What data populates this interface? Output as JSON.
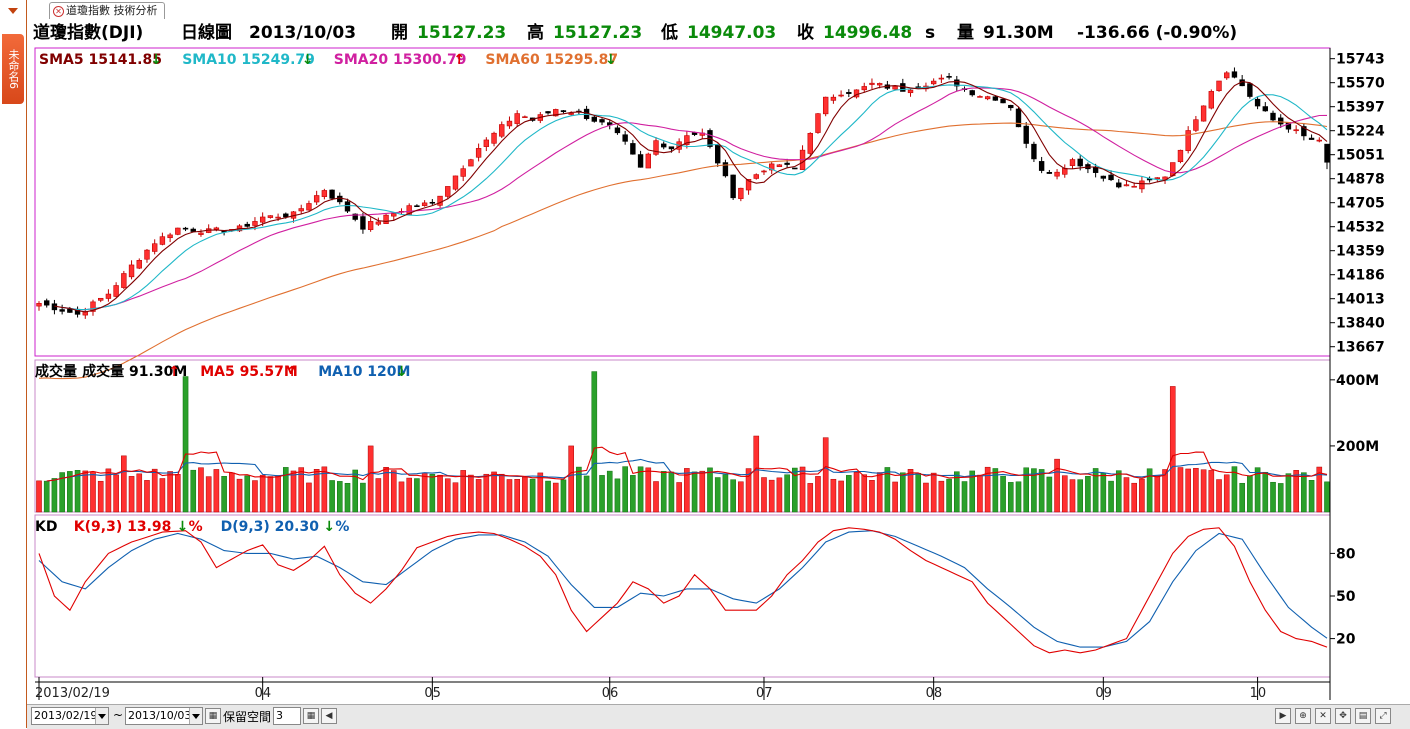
{
  "side_tab_label": "未命名6",
  "tab": {
    "label": "道瓊指數 技術分析"
  },
  "header": {
    "name": "道瓊指數(DJI)",
    "chart_type": "日線圖",
    "date": "2013/10/03",
    "open_label": "開",
    "open": "15127.23",
    "high_label": "高",
    "high": "15127.23",
    "low_label": "低",
    "low": "14947.03",
    "close_label": "收",
    "close": "14996.48",
    "close_suffix": "s",
    "volume_label": "量",
    "volume": "91.30M",
    "change": "-136.66 (-0.90%)"
  },
  "legends": {
    "price": [
      {
        "text": "SMA5 15141.85",
        "color": "#800000",
        "arrow": "down"
      },
      {
        "text": "SMA10 15249.79",
        "color": "#20b8c8",
        "arrow": "down"
      },
      {
        "text": "SMA20 15300.79",
        "color": "#d020a0",
        "arrow": "up"
      },
      {
        "text": "SMA60 15295.87",
        "color": "#e07030",
        "arrow": "down"
      }
    ],
    "volume": [
      {
        "text": "成交量",
        "color": "#000000",
        "arrow": "none"
      },
      {
        "text": "成交量 91.30M",
        "color": "#000000",
        "arrow": "up"
      },
      {
        "text": "MA5 95.57M",
        "color": "#e00000",
        "arrow": "up"
      },
      {
        "text": "MA10 120M",
        "color": "#1060b0",
        "arrow": "down"
      }
    ],
    "kd": [
      {
        "text": "KD",
        "color": "#000000",
        "arrow": "none"
      },
      {
        "text": "K(9,3) 13.98",
        "color": "#e00000",
        "arrow": "down",
        "suffix": "%"
      },
      {
        "text": "D(9,3) 20.30",
        "color": "#1060b0",
        "arrow": "down",
        "suffix": "%"
      }
    ]
  },
  "colors": {
    "up": "#ff3030",
    "down": "#000000",
    "vol_up": "#ff3030",
    "vol_down": "#2aa02a",
    "frame": "#cc22cc",
    "axis": "#000000"
  },
  "chart_data": [
    {
      "type": "candlestick",
      "title": "道瓊指數(DJI) 日線圖",
      "x_start": "2013/02/19",
      "x_end": "2013/10/03",
      "month_ticks": [
        {
          "label": "2013/02/19",
          "index": 0
        },
        {
          "label": "04",
          "index": 29
        },
        {
          "label": "05",
          "index": 51
        },
        {
          "label": "06",
          "index": 74
        },
        {
          "label": "07",
          "index": 94
        },
        {
          "label": "08",
          "index": 116
        },
        {
          "label": "09",
          "index": 138
        },
        {
          "label": "10",
          "index": 158
        }
      ],
      "y_ticks": [
        15743,
        15570,
        15397,
        15224,
        15051,
        14878,
        14705,
        14532,
        14359,
        14186,
        14013,
        13840,
        13667
      ],
      "ylim": [
        13600,
        15820
      ],
      "anchors": [
        [
          0,
          13980
        ],
        [
          5,
          13900
        ],
        [
          9,
          14050
        ],
        [
          12,
          14250
        ],
        [
          15,
          14420
        ],
        [
          18,
          14520
        ],
        [
          22,
          14500
        ],
        [
          26,
          14520
        ],
        [
          29,
          14600
        ],
        [
          33,
          14620
        ],
        [
          37,
          14800
        ],
        [
          40,
          14650
        ],
        [
          42,
          14530
        ],
        [
          45,
          14600
        ],
        [
          48,
          14680
        ],
        [
          51,
          14700
        ],
        [
          54,
          14900
        ],
        [
          57,
          15100
        ],
        [
          60,
          15250
        ],
        [
          62,
          15350
        ],
        [
          64,
          15300
        ],
        [
          67,
          15380
        ],
        [
          70,
          15350
        ],
        [
          72,
          15300
        ],
        [
          74,
          15250
        ],
        [
          76,
          15130
        ],
        [
          78,
          14950
        ],
        [
          80,
          15150
        ],
        [
          82,
          15100
        ],
        [
          84,
          15200
        ],
        [
          86,
          15200
        ],
        [
          88,
          15000
        ],
        [
          90,
          14760
        ],
        [
          92,
          14870
        ],
        [
          94,
          14950
        ],
        [
          96,
          14980
        ],
        [
          98,
          14950
        ],
        [
          100,
          15220
        ],
        [
          102,
          15450
        ],
        [
          104,
          15500
        ],
        [
          106,
          15510
        ],
        [
          108,
          15560
        ],
        [
          110,
          15540
        ],
        [
          112,
          15520
        ],
        [
          114,
          15550
        ],
        [
          116,
          15580
        ],
        [
          118,
          15600
        ],
        [
          120,
          15520
        ],
        [
          122,
          15480
        ],
        [
          124,
          15460
        ],
        [
          126,
          15400
        ],
        [
          128,
          15120
        ],
        [
          130,
          14950
        ],
        [
          132,
          14920
        ],
        [
          134,
          15020
        ],
        [
          136,
          14950
        ],
        [
          138,
          14900
        ],
        [
          140,
          14820
        ],
        [
          142,
          14830
        ],
        [
          144,
          14860
        ],
        [
          146,
          14900
        ],
        [
          148,
          15100
        ],
        [
          150,
          15320
        ],
        [
          152,
          15520
        ],
        [
          154,
          15660
        ],
        [
          156,
          15550
        ],
        [
          158,
          15400
        ],
        [
          160,
          15300
        ],
        [
          162,
          15250
        ],
        [
          164,
          15180
        ],
        [
          166,
          15140
        ],
        [
          167,
          14996.48
        ]
      ],
      "last_bar": {
        "open": 15127.23,
        "high": 15127.23,
        "low": 14947.03,
        "close": 14996.48
      },
      "sma_last": {
        "SMA5": 15141.85,
        "SMA10": 15249.79,
        "SMA20": 15300.79,
        "SMA60": 15295.87
      }
    },
    {
      "type": "bar",
      "title": "成交量",
      "y_ticks": [
        {
          "label": "400M",
          "value": 400
        },
        {
          "label": "200M",
          "value": 200
        }
      ],
      "ylim": [
        0,
        460
      ],
      "base_level": 115,
      "spikes": [
        {
          "index": 19,
          "value": 410
        },
        {
          "index": 72,
          "value": 425
        },
        {
          "index": 93,
          "value": 230
        },
        {
          "index": 147,
          "value": 380
        },
        {
          "index": 11,
          "value": 170
        },
        {
          "index": 43,
          "value": 200
        },
        {
          "index": 69,
          "value": 200
        },
        {
          "index": 102,
          "value": 225
        },
        {
          "index": 132,
          "value": 160
        }
      ],
      "last_value": 91.3,
      "ma_last": {
        "MA5": 95.57,
        "MA10": 120
      }
    },
    {
      "type": "line",
      "title": "KD",
      "y_ticks": [
        80,
        50,
        20
      ],
      "ylim": [
        0,
        100
      ],
      "k_anchors": [
        [
          0,
          80
        ],
        [
          2,
          50
        ],
        [
          4,
          40
        ],
        [
          6,
          60
        ],
        [
          9,
          80
        ],
        [
          12,
          88
        ],
        [
          16,
          95
        ],
        [
          19,
          96
        ],
        [
          21,
          88
        ],
        [
          23,
          70
        ],
        [
          25,
          76
        ],
        [
          27,
          82
        ],
        [
          29,
          86
        ],
        [
          31,
          72
        ],
        [
          33,
          68
        ],
        [
          35,
          75
        ],
        [
          37,
          85
        ],
        [
          39,
          65
        ],
        [
          41,
          52
        ],
        [
          43,
          45
        ],
        [
          45,
          55
        ],
        [
          47,
          68
        ],
        [
          49,
          84
        ],
        [
          51,
          88
        ],
        [
          53,
          92
        ],
        [
          55,
          94
        ],
        [
          57,
          95
        ],
        [
          59,
          94
        ],
        [
          61,
          90
        ],
        [
          63,
          85
        ],
        [
          65,
          78
        ],
        [
          67,
          65
        ],
        [
          69,
          40
        ],
        [
          71,
          25
        ],
        [
          73,
          35
        ],
        [
          75,
          45
        ],
        [
          77,
          60
        ],
        [
          79,
          55
        ],
        [
          81,
          45
        ],
        [
          83,
          50
        ],
        [
          85,
          65
        ],
        [
          87,
          55
        ],
        [
          89,
          40
        ],
        [
          91,
          40
        ],
        [
          93,
          40
        ],
        [
          95,
          50
        ],
        [
          97,
          65
        ],
        [
          99,
          75
        ],
        [
          101,
          88
        ],
        [
          103,
          96
        ],
        [
          105,
          98
        ],
        [
          107,
          97
        ],
        [
          109,
          95
        ],
        [
          111,
          90
        ],
        [
          113,
          82
        ],
        [
          115,
          75
        ],
        [
          117,
          70
        ],
        [
          119,
          65
        ],
        [
          121,
          60
        ],
        [
          123,
          45
        ],
        [
          125,
          35
        ],
        [
          127,
          25
        ],
        [
          129,
          15
        ],
        [
          131,
          10
        ],
        [
          133,
          12
        ],
        [
          135,
          10
        ],
        [
          137,
          12
        ],
        [
          139,
          16
        ],
        [
          141,
          20
        ],
        [
          143,
          40
        ],
        [
          145,
          60
        ],
        [
          147,
          80
        ],
        [
          149,
          92
        ],
        [
          151,
          97
        ],
        [
          153,
          98
        ],
        [
          155,
          85
        ],
        [
          157,
          60
        ],
        [
          159,
          40
        ],
        [
          161,
          25
        ],
        [
          163,
          20
        ],
        [
          165,
          18
        ],
        [
          167,
          13.98
        ]
      ],
      "d_anchors": [
        [
          0,
          75
        ],
        [
          3,
          60
        ],
        [
          6,
          55
        ],
        [
          9,
          70
        ],
        [
          12,
          82
        ],
        [
          15,
          90
        ],
        [
          18,
          94
        ],
        [
          21,
          90
        ],
        [
          24,
          82
        ],
        [
          27,
          80
        ],
        [
          30,
          80
        ],
        [
          33,
          76
        ],
        [
          36,
          78
        ],
        [
          39,
          70
        ],
        [
          42,
          60
        ],
        [
          45,
          58
        ],
        [
          48,
          70
        ],
        [
          51,
          82
        ],
        [
          54,
          90
        ],
        [
          57,
          93
        ],
        [
          60,
          93
        ],
        [
          63,
          88
        ],
        [
          66,
          78
        ],
        [
          69,
          58
        ],
        [
          72,
          42
        ],
        [
          75,
          42
        ],
        [
          78,
          52
        ],
        [
          81,
          50
        ],
        [
          84,
          55
        ],
        [
          87,
          55
        ],
        [
          90,
          48
        ],
        [
          93,
          45
        ],
        [
          96,
          55
        ],
        [
          99,
          70
        ],
        [
          102,
          88
        ],
        [
          105,
          95
        ],
        [
          108,
          96
        ],
        [
          111,
          92
        ],
        [
          114,
          85
        ],
        [
          117,
          78
        ],
        [
          120,
          70
        ],
        [
          123,
          55
        ],
        [
          126,
          42
        ],
        [
          129,
          28
        ],
        [
          132,
          18
        ],
        [
          135,
          14
        ],
        [
          138,
          14
        ],
        [
          141,
          18
        ],
        [
          144,
          32
        ],
        [
          147,
          60
        ],
        [
          150,
          82
        ],
        [
          153,
          94
        ],
        [
          156,
          90
        ],
        [
          159,
          65
        ],
        [
          162,
          42
        ],
        [
          165,
          28
        ],
        [
          167,
          20.3
        ]
      ]
    }
  ]
}
